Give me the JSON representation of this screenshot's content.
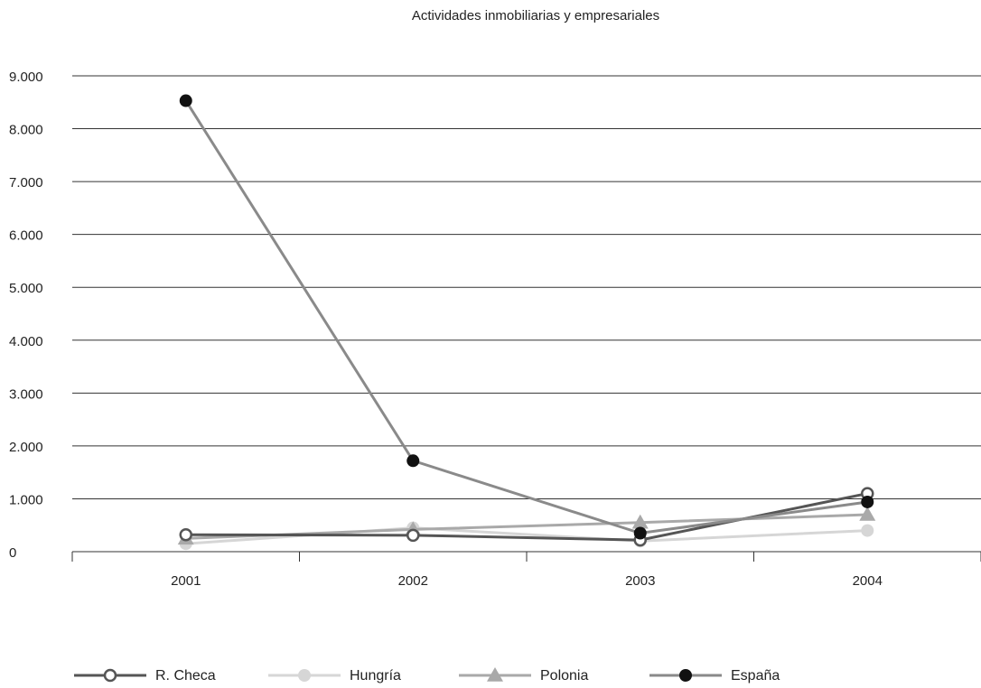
{
  "chart_data": {
    "type": "line",
    "title": "Actividades inmobiliarias y empresariales",
    "xlabel": "",
    "ylabel": "",
    "categories": [
      "2001",
      "2002",
      "2003",
      "2004"
    ],
    "ylim": [
      0,
      9000
    ],
    "yticks": [
      0,
      1000,
      2000,
      3000,
      4000,
      5000,
      6000,
      7000,
      8000,
      9000
    ],
    "ytick_labels": [
      "0",
      "1.000",
      "2.000",
      "3.000",
      "4.000",
      "5.000",
      "6.000",
      "7.000",
      "8.000",
      "9.000"
    ],
    "grid": true,
    "legend_position": "bottom",
    "series": [
      {
        "name": "R. Checa",
        "values": [
          320,
          310,
          220,
          1100
        ],
        "color": "#555555",
        "marker": "open-circle"
      },
      {
        "name": "Hungría",
        "values": [
          150,
          450,
          200,
          400
        ],
        "color": "#d6d6d6",
        "marker": "filled-circle"
      },
      {
        "name": "Polonia",
        "values": [
          250,
          420,
          550,
          700
        ],
        "color": "#a9a9a9",
        "marker": "triangle"
      },
      {
        "name": "España",
        "values": [
          8530,
          1720,
          350,
          940
        ],
        "color": "#8a8a8a",
        "marker": "black-circle"
      }
    ]
  }
}
